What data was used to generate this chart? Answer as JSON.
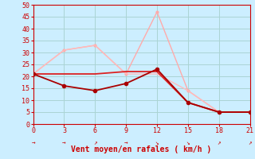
{
  "xlabel": "Vent moyen/en rafales ( km/h )",
  "bg_color": "#cceeff",
  "grid_color": "#aad4d4",
  "ylim": [
    0,
    50
  ],
  "yticks": [
    0,
    5,
    10,
    15,
    20,
    25,
    30,
    35,
    40,
    45,
    50
  ],
  "xlim": [
    0,
    21
  ],
  "xticks": [
    0,
    3,
    6,
    9,
    12,
    15,
    18,
    21
  ],
  "series": [
    {
      "x": [
        0,
        3,
        6,
        9,
        12,
        15,
        18,
        21
      ],
      "y": [
        21,
        31,
        33,
        21,
        47,
        14,
        5,
        5
      ],
      "color": "#ffaaaa",
      "lw": 1.0,
      "marker": "o",
      "ms": 2.0,
      "zorder": 2
    },
    {
      "x": [
        0,
        3,
        6,
        9,
        12,
        15,
        18,
        21
      ],
      "y": [
        21,
        31,
        33,
        21,
        21,
        14,
        5,
        5
      ],
      "color": "#ffbbbb",
      "lw": 1.0,
      "marker": null,
      "ms": 0,
      "zorder": 2
    },
    {
      "x": [
        0,
        3,
        6,
        9,
        12,
        15,
        18,
        21
      ],
      "y": [
        21,
        21,
        21,
        22,
        22,
        9,
        5,
        5
      ],
      "color": "#dd2222",
      "lw": 1.3,
      "marker": null,
      "ms": 0,
      "zorder": 3
    },
    {
      "x": [
        0,
        3,
        6,
        9,
        12,
        15,
        18,
        21
      ],
      "y": [
        21,
        16,
        14,
        17,
        23,
        9,
        5,
        5
      ],
      "color": "#aa0000",
      "lw": 1.3,
      "marker": "o",
      "ms": 3.0,
      "zorder": 4
    }
  ],
  "arrow_chars": [
    "→",
    "→",
    "↗",
    "→",
    "↘",
    "↘",
    "↗",
    "↗"
  ],
  "arrow_color": "#cc0000"
}
